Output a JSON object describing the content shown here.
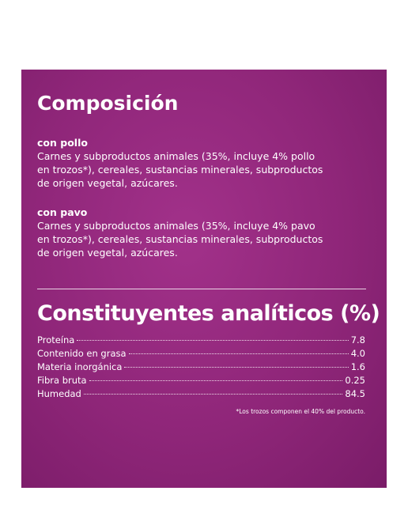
{
  "composition": {
    "title": "Composición",
    "sections": [
      {
        "heading": "con pollo",
        "lines": [
          "Carnes y subproductos animales (35%, incluye 4% pollo",
          "en trozos*), cereales, sustancias minerales, subproductos",
          "de origen vegetal, azúcares."
        ]
      },
      {
        "heading": "con pavo",
        "lines": [
          "Carnes y subproductos animales (35%, incluye 4% pavo",
          "en trozos*), cereales, sustancias minerales, subproductos",
          "de origen vegetal, azúcares."
        ]
      }
    ]
  },
  "analysis": {
    "title": "Constituyentes analíticos (%)",
    "rows": [
      [
        "Proteína",
        "7.8"
      ],
      [
        "Contenido en grasa",
        "4.0"
      ],
      [
        "Materia inorgánica",
        "1.6"
      ],
      [
        "Fibra bruta",
        "0.25"
      ],
      [
        "Humedad",
        "84.5"
      ]
    ],
    "footnote": "*Los trozos componen el 40% del producto."
  }
}
